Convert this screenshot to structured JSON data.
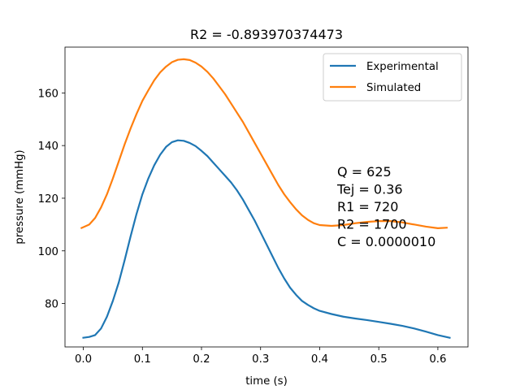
{
  "chart_data": {
    "type": "line",
    "title": "R2 = -0.893970374473",
    "xlabel": "time (s)",
    "ylabel": "pressure (mmHg)",
    "xlim": [
      -0.031,
      0.651
    ],
    "ylim": [
      63.5,
      177.4
    ],
    "xticks": [
      "0.0",
      "0.1",
      "0.2",
      "0.3",
      "0.4",
      "0.5",
      "0.6"
    ],
    "xtick_values": [
      0.0,
      0.1,
      0.2,
      0.3,
      0.4,
      0.5,
      0.6
    ],
    "yticks": [
      "80",
      "100",
      "120",
      "140",
      "160"
    ],
    "ytick_values": [
      80,
      100,
      120,
      140,
      160
    ],
    "grid": false,
    "legend_position": "top-right",
    "series": [
      {
        "name": "Experimental",
        "color": "#1f77b4",
        "x": [
          0.0,
          0.01,
          0.02,
          0.03,
          0.04,
          0.05,
          0.06,
          0.07,
          0.08,
          0.09,
          0.1,
          0.11,
          0.12,
          0.13,
          0.14,
          0.15,
          0.16,
          0.17,
          0.18,
          0.19,
          0.2,
          0.21,
          0.22,
          0.23,
          0.24,
          0.25,
          0.26,
          0.27,
          0.28,
          0.29,
          0.3,
          0.31,
          0.32,
          0.33,
          0.34,
          0.35,
          0.36,
          0.37,
          0.38,
          0.39,
          0.4,
          0.42,
          0.44,
          0.46,
          0.48,
          0.5,
          0.52,
          0.54,
          0.56,
          0.58,
          0.6,
          0.62
        ],
        "y": [
          67.0,
          67.3,
          68.0,
          70.5,
          75.0,
          81.0,
          88.0,
          96.5,
          105.5,
          114.0,
          121.5,
          127.5,
          132.5,
          136.5,
          139.5,
          141.3,
          142.0,
          141.8,
          141.0,
          139.8,
          138.0,
          136.0,
          133.5,
          131.0,
          128.5,
          126.0,
          123.0,
          119.5,
          115.5,
          111.5,
          107.0,
          102.5,
          98.0,
          93.5,
          89.5,
          86.0,
          83.3,
          81.0,
          79.5,
          78.2,
          77.2,
          76.0,
          75.0,
          74.3,
          73.7,
          73.0,
          72.3,
          71.5,
          70.5,
          69.3,
          68.0,
          67.0
        ]
      },
      {
        "name": "Simulated",
        "color": "#ff7f0e",
        "x": [
          -0.003,
          0.01,
          0.02,
          0.03,
          0.04,
          0.05,
          0.06,
          0.07,
          0.08,
          0.09,
          0.1,
          0.11,
          0.12,
          0.13,
          0.14,
          0.15,
          0.16,
          0.17,
          0.18,
          0.19,
          0.2,
          0.21,
          0.22,
          0.23,
          0.24,
          0.25,
          0.26,
          0.27,
          0.28,
          0.29,
          0.3,
          0.31,
          0.32,
          0.33,
          0.34,
          0.35,
          0.36,
          0.37,
          0.38,
          0.39,
          0.4,
          0.42,
          0.44,
          0.46,
          0.48,
          0.5,
          0.52,
          0.54,
          0.56,
          0.58,
          0.6,
          0.615
        ],
        "y": [
          108.7,
          110.0,
          112.5,
          116.5,
          121.5,
          127.5,
          134.0,
          140.5,
          146.5,
          152.0,
          157.0,
          161.0,
          164.8,
          167.8,
          170.0,
          171.7,
          172.6,
          172.8,
          172.5,
          171.5,
          170.0,
          168.0,
          165.5,
          162.5,
          159.5,
          156.0,
          152.5,
          149.0,
          145.0,
          141.0,
          137.0,
          133.0,
          129.0,
          125.0,
          121.5,
          118.5,
          115.8,
          113.5,
          111.8,
          110.5,
          109.8,
          109.5,
          109.8,
          110.5,
          111.0,
          111.3,
          111.3,
          110.8,
          110.0,
          109.2,
          108.6,
          108.8
        ]
      }
    ],
    "annotation": {
      "lines": [
        "Q = 625",
        "Tej = 0.36",
        "R1 = 720",
        "R2 = 1700",
        "C = 0.0000010"
      ]
    }
  }
}
